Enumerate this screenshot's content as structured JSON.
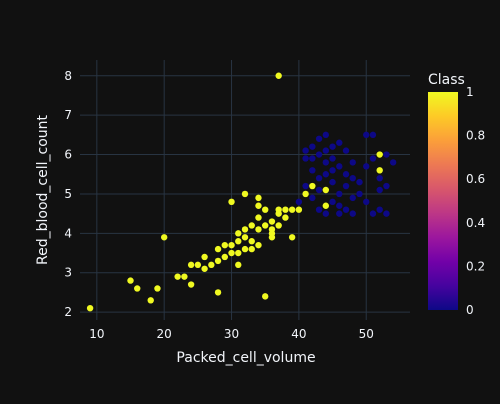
{
  "chart_data": {
    "type": "scatter",
    "xlabel": "Packed_cell_volume",
    "ylabel": "Red_blood_cell_count",
    "xlim": [
      7.5,
      56.5
    ],
    "ylim": [
      1.8,
      8.4
    ],
    "xticks": [
      10,
      20,
      30,
      40,
      50
    ],
    "yticks": [
      2,
      3,
      4,
      5,
      6,
      7,
      8
    ],
    "grid": true,
    "colorbar": {
      "title": "Class",
      "range": [
        0,
        1
      ],
      "ticks": [
        0,
        0.2,
        0.4,
        0.6,
        0.8,
        1
      ],
      "tick_labels": [
        "0",
        "0.2",
        "0.4",
        "0.6",
        "0.8",
        "1"
      ],
      "colorscale": [
        "#0d0887",
        "#46039f",
        "#7201a8",
        "#9c179e",
        "#bd3786",
        "#d8576b",
        "#ed7953",
        "#fb9f3a",
        "#fdca26",
        "#f0f921"
      ]
    },
    "points": [
      {
        "x": 9,
        "y": 2.1,
        "c": 1
      },
      {
        "x": 15,
        "y": 2.8,
        "c": 1
      },
      {
        "x": 16,
        "y": 2.6,
        "c": 1
      },
      {
        "x": 18,
        "y": 2.3,
        "c": 1
      },
      {
        "x": 19,
        "y": 2.6,
        "c": 1
      },
      {
        "x": 20,
        "y": 3.9,
        "c": 1
      },
      {
        "x": 22,
        "y": 2.9,
        "c": 1
      },
      {
        "x": 23,
        "y": 2.9,
        "c": 1
      },
      {
        "x": 24,
        "y": 3.2,
        "c": 1
      },
      {
        "x": 24,
        "y": 2.7,
        "c": 1
      },
      {
        "x": 25,
        "y": 3.2,
        "c": 1
      },
      {
        "x": 26,
        "y": 3.1,
        "c": 1
      },
      {
        "x": 26,
        "y": 3.4,
        "c": 1
      },
      {
        "x": 27,
        "y": 3.2,
        "c": 1
      },
      {
        "x": 28,
        "y": 3.3,
        "c": 1
      },
      {
        "x": 28,
        "y": 2.5,
        "c": 1
      },
      {
        "x": 28,
        "y": 3.6,
        "c": 1
      },
      {
        "x": 29,
        "y": 3.4,
        "c": 1
      },
      {
        "x": 29,
        "y": 3.7,
        "c": 1
      },
      {
        "x": 30,
        "y": 3.5,
        "c": 1
      },
      {
        "x": 30,
        "y": 3.7,
        "c": 1
      },
      {
        "x": 30,
        "y": 4.8,
        "c": 1
      },
      {
        "x": 31,
        "y": 3.5,
        "c": 1
      },
      {
        "x": 31,
        "y": 3.8,
        "c": 1
      },
      {
        "x": 31,
        "y": 4.0,
        "c": 1
      },
      {
        "x": 31,
        "y": 3.2,
        "c": 1
      },
      {
        "x": 32,
        "y": 3.6,
        "c": 1
      },
      {
        "x": 32,
        "y": 3.9,
        "c": 1
      },
      {
        "x": 32,
        "y": 5.0,
        "c": 1
      },
      {
        "x": 32,
        "y": 4.1,
        "c": 1
      },
      {
        "x": 33,
        "y": 3.8,
        "c": 1
      },
      {
        "x": 33,
        "y": 4.2,
        "c": 1
      },
      {
        "x": 33,
        "y": 3.6,
        "c": 1
      },
      {
        "x": 34,
        "y": 4.1,
        "c": 1
      },
      {
        "x": 34,
        "y": 4.4,
        "c": 1
      },
      {
        "x": 34,
        "y": 4.9,
        "c": 1
      },
      {
        "x": 34,
        "y": 3.7,
        "c": 1
      },
      {
        "x": 34,
        "y": 4.7,
        "c": 1
      },
      {
        "x": 35,
        "y": 4.2,
        "c": 1
      },
      {
        "x": 35,
        "y": 4.6,
        "c": 1
      },
      {
        "x": 35,
        "y": 2.4,
        "c": 1
      },
      {
        "x": 36,
        "y": 3.9,
        "c": 1
      },
      {
        "x": 36,
        "y": 4.3,
        "c": 1
      },
      {
        "x": 36,
        "y": 4.0,
        "c": 1
      },
      {
        "x": 36,
        "y": 4.1,
        "c": 1
      },
      {
        "x": 37,
        "y": 4.2,
        "c": 1
      },
      {
        "x": 37,
        "y": 4.6,
        "c": 1
      },
      {
        "x": 37,
        "y": 4.5,
        "c": 1
      },
      {
        "x": 37,
        "y": 8.0,
        "c": 1
      },
      {
        "x": 38,
        "y": 4.4,
        "c": 1
      },
      {
        "x": 38,
        "y": 4.6,
        "c": 1
      },
      {
        "x": 39,
        "y": 4.6,
        "c": 1
      },
      {
        "x": 39,
        "y": 3.9,
        "c": 1
      },
      {
        "x": 40,
        "y": 4.6,
        "c": 1
      },
      {
        "x": 41,
        "y": 5.0,
        "c": 1
      },
      {
        "x": 42,
        "y": 5.2,
        "c": 1
      },
      {
        "x": 44,
        "y": 5.1,
        "c": 1
      },
      {
        "x": 44,
        "y": 4.7,
        "c": 1
      },
      {
        "x": 52,
        "y": 6.0,
        "c": 1
      },
      {
        "x": 52,
        "y": 5.6,
        "c": 1
      },
      {
        "x": 40,
        "y": 4.8,
        "c": 0
      },
      {
        "x": 41,
        "y": 5.2,
        "c": 0
      },
      {
        "x": 41,
        "y": 5.9,
        "c": 0
      },
      {
        "x": 41,
        "y": 6.1,
        "c": 0
      },
      {
        "x": 42,
        "y": 4.9,
        "c": 0
      },
      {
        "x": 42,
        "y": 5.6,
        "c": 0
      },
      {
        "x": 42,
        "y": 6.2,
        "c": 0
      },
      {
        "x": 42,
        "y": 5.9,
        "c": 0
      },
      {
        "x": 43,
        "y": 4.6,
        "c": 0
      },
      {
        "x": 43,
        "y": 5.4,
        "c": 0
      },
      {
        "x": 43,
        "y": 6.0,
        "c": 0
      },
      {
        "x": 43,
        "y": 6.4,
        "c": 0
      },
      {
        "x": 43,
        "y": 5.1,
        "c": 0
      },
      {
        "x": 44,
        "y": 4.5,
        "c": 0
      },
      {
        "x": 44,
        "y": 5.5,
        "c": 0
      },
      {
        "x": 44,
        "y": 6.1,
        "c": 0
      },
      {
        "x": 44,
        "y": 6.5,
        "c": 0
      },
      {
        "x": 44,
        "y": 5.8,
        "c": 0
      },
      {
        "x": 45,
        "y": 4.8,
        "c": 0
      },
      {
        "x": 45,
        "y": 5.3,
        "c": 0
      },
      {
        "x": 45,
        "y": 5.9,
        "c": 0
      },
      {
        "x": 45,
        "y": 6.2,
        "c": 0
      },
      {
        "x": 45,
        "y": 5.6,
        "c": 0
      },
      {
        "x": 46,
        "y": 4.7,
        "c": 0
      },
      {
        "x": 46,
        "y": 5.0,
        "c": 0
      },
      {
        "x": 46,
        "y": 5.7,
        "c": 0
      },
      {
        "x": 46,
        "y": 6.3,
        "c": 0
      },
      {
        "x": 47,
        "y": 4.6,
        "c": 0
      },
      {
        "x": 47,
        "y": 5.2,
        "c": 0
      },
      {
        "x": 47,
        "y": 5.5,
        "c": 0
      },
      {
        "x": 47,
        "y": 6.1,
        "c": 0
      },
      {
        "x": 48,
        "y": 4.9,
        "c": 0
      },
      {
        "x": 48,
        "y": 5.4,
        "c": 0
      },
      {
        "x": 48,
        "y": 5.8,
        "c": 0
      },
      {
        "x": 49,
        "y": 5.0,
        "c": 0
      },
      {
        "x": 49,
        "y": 5.3,
        "c": 0
      },
      {
        "x": 50,
        "y": 4.8,
        "c": 0
      },
      {
        "x": 50,
        "y": 5.7,
        "c": 0
      },
      {
        "x": 50,
        "y": 6.5,
        "c": 0
      },
      {
        "x": 51,
        "y": 4.5,
        "c": 0
      },
      {
        "x": 51,
        "y": 5.9,
        "c": 0
      },
      {
        "x": 51,
        "y": 6.5,
        "c": 0
      },
      {
        "x": 52,
        "y": 4.6,
        "c": 0
      },
      {
        "x": 52,
        "y": 5.1,
        "c": 0
      },
      {
        "x": 52,
        "y": 5.4,
        "c": 0
      },
      {
        "x": 53,
        "y": 4.5,
        "c": 0
      },
      {
        "x": 53,
        "y": 5.2,
        "c": 0
      },
      {
        "x": 53,
        "y": 6.0,
        "c": 0
      },
      {
        "x": 54,
        "y": 5.8,
        "c": 0
      },
      {
        "x": 48,
        "y": 4.5,
        "c": 0
      },
      {
        "x": 46,
        "y": 4.5,
        "c": 0
      }
    ]
  }
}
